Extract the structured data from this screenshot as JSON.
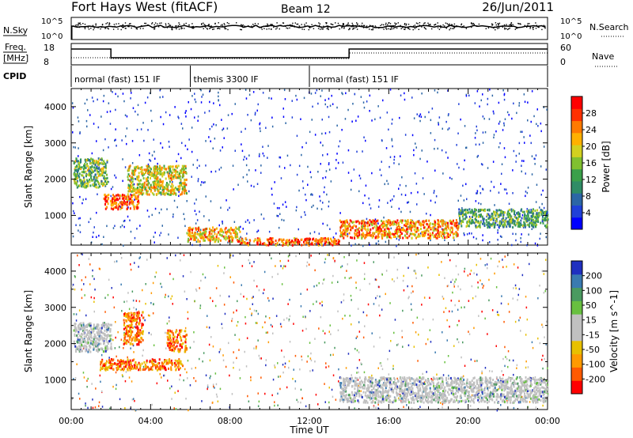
{
  "header": {
    "radar": "Fort Hays West (fitACF)",
    "beam": "Beam 12",
    "date": "26/Jun/2011"
  },
  "top_panels": {
    "nsky_label": "N.Sky",
    "nsky_ticks": [
      "10^5",
      "10^0"
    ],
    "nsearch_label": "N.Search",
    "nsearch_ticks": [
      "10^5",
      "10^0"
    ],
    "freq_label": "Freq.",
    "freq_unit": "[MHz]",
    "freq_ticks": [
      "18",
      "8"
    ],
    "nave_label": "Nave",
    "nave_ticks": [
      "60",
      "0"
    ],
    "cpid_label": "CPID",
    "cpid_segments": [
      {
        "label": "normal (fast) 151 IF",
        "start_hour": 0,
        "end_hour": 6
      },
      {
        "label": "themis 3300 IF",
        "start_hour": 6,
        "end_hour": 12
      },
      {
        "label": "normal (fast) 151 IF",
        "start_hour": 12,
        "end_hour": 24
      }
    ]
  },
  "chart_data": [
    {
      "type": "heatmap",
      "name": "power",
      "ylabel": "Slant Range [km]",
      "xlabel": "",
      "x_ticks": [
        "00:00",
        "04:00",
        "08:00",
        "12:00",
        "16:00",
        "20:00",
        "00:00"
      ],
      "xlim_hours": [
        0,
        24
      ],
      "ylim": [
        180,
        4500
      ],
      "y_ticks": [
        1000,
        2000,
        3000,
        4000
      ],
      "colorbar_label": "Power [dB]",
      "colorbar_ticks": [
        4,
        8,
        12,
        16,
        20,
        24,
        28
      ],
      "colorbar_colors": [
        "#0000ff",
        "#2040d8",
        "#2c66a6",
        "#2f8c66",
        "#3aa04a",
        "#80c030",
        "#d2d020",
        "#ffb000",
        "#ff7a00",
        "#ff3000",
        "#ff0000"
      ],
      "regions": [
        {
          "start_hour": 0.1,
          "end_hour": 1.8,
          "range_lo": 1800,
          "range_hi": 2600,
          "level": 0.45
        },
        {
          "start_hour": 1.6,
          "end_hour": 3.4,
          "range_lo": 1200,
          "range_hi": 1600,
          "level": 0.85
        },
        {
          "start_hour": 2.8,
          "end_hour": 5.8,
          "range_lo": 1600,
          "range_hi": 2400,
          "level": 0.6
        },
        {
          "start_hour": 5.8,
          "end_hour": 8.5,
          "range_lo": 300,
          "range_hi": 700,
          "level": 0.7
        },
        {
          "start_hour": 8.5,
          "end_hour": 13.5,
          "range_lo": 200,
          "range_hi": 400,
          "level": 0.8
        },
        {
          "start_hour": 13.5,
          "end_hour": 19.5,
          "range_lo": 400,
          "range_hi": 900,
          "level": 0.75
        },
        {
          "start_hour": 19.5,
          "end_hour": 24,
          "range_lo": 700,
          "range_hi": 1200,
          "level": 0.4
        }
      ]
    },
    {
      "type": "heatmap",
      "name": "velocity",
      "ylabel": "Slant Range [km]",
      "xlabel": "Time UT",
      "x_ticks": [
        "00:00",
        "04:00",
        "08:00",
        "12:00",
        "16:00",
        "20:00",
        "00:00"
      ],
      "xlim_hours": [
        0,
        24
      ],
      "ylim": [
        180,
        4500
      ],
      "y_ticks": [
        1000,
        2000,
        3000,
        4000
      ],
      "colorbar_label": "Velocity [m s^-1]",
      "colorbar_ticks": [
        200,
        100,
        50,
        15,
        -15,
        -50,
        -100,
        -200
      ],
      "colorbar_colors": [
        "#2030c0",
        "#3a7ab0",
        "#4a9a60",
        "#68c040",
        "#c0c0c0",
        "#c0c0c0",
        "#e8c000",
        "#ff9a00",
        "#ff5a00",
        "#ff0000"
      ],
      "regions": [
        {
          "start_hour": 0.1,
          "end_hour": 2.0,
          "range_lo": 1800,
          "range_hi": 2600,
          "level": 0.5
        },
        {
          "start_hour": 2.6,
          "end_hour": 3.6,
          "range_lo": 2000,
          "range_hi": 2900,
          "level": 0.95
        },
        {
          "start_hour": 4.8,
          "end_hour": 5.8,
          "range_lo": 1800,
          "range_hi": 2400,
          "level": 0.95
        },
        {
          "start_hour": 1.4,
          "end_hour": 5.6,
          "range_lo": 1300,
          "range_hi": 1600,
          "level": 0.75
        },
        {
          "start_hour": 13.5,
          "end_hour": 24,
          "range_lo": 400,
          "range_hi": 1100,
          "level": 0.5
        }
      ]
    }
  ]
}
